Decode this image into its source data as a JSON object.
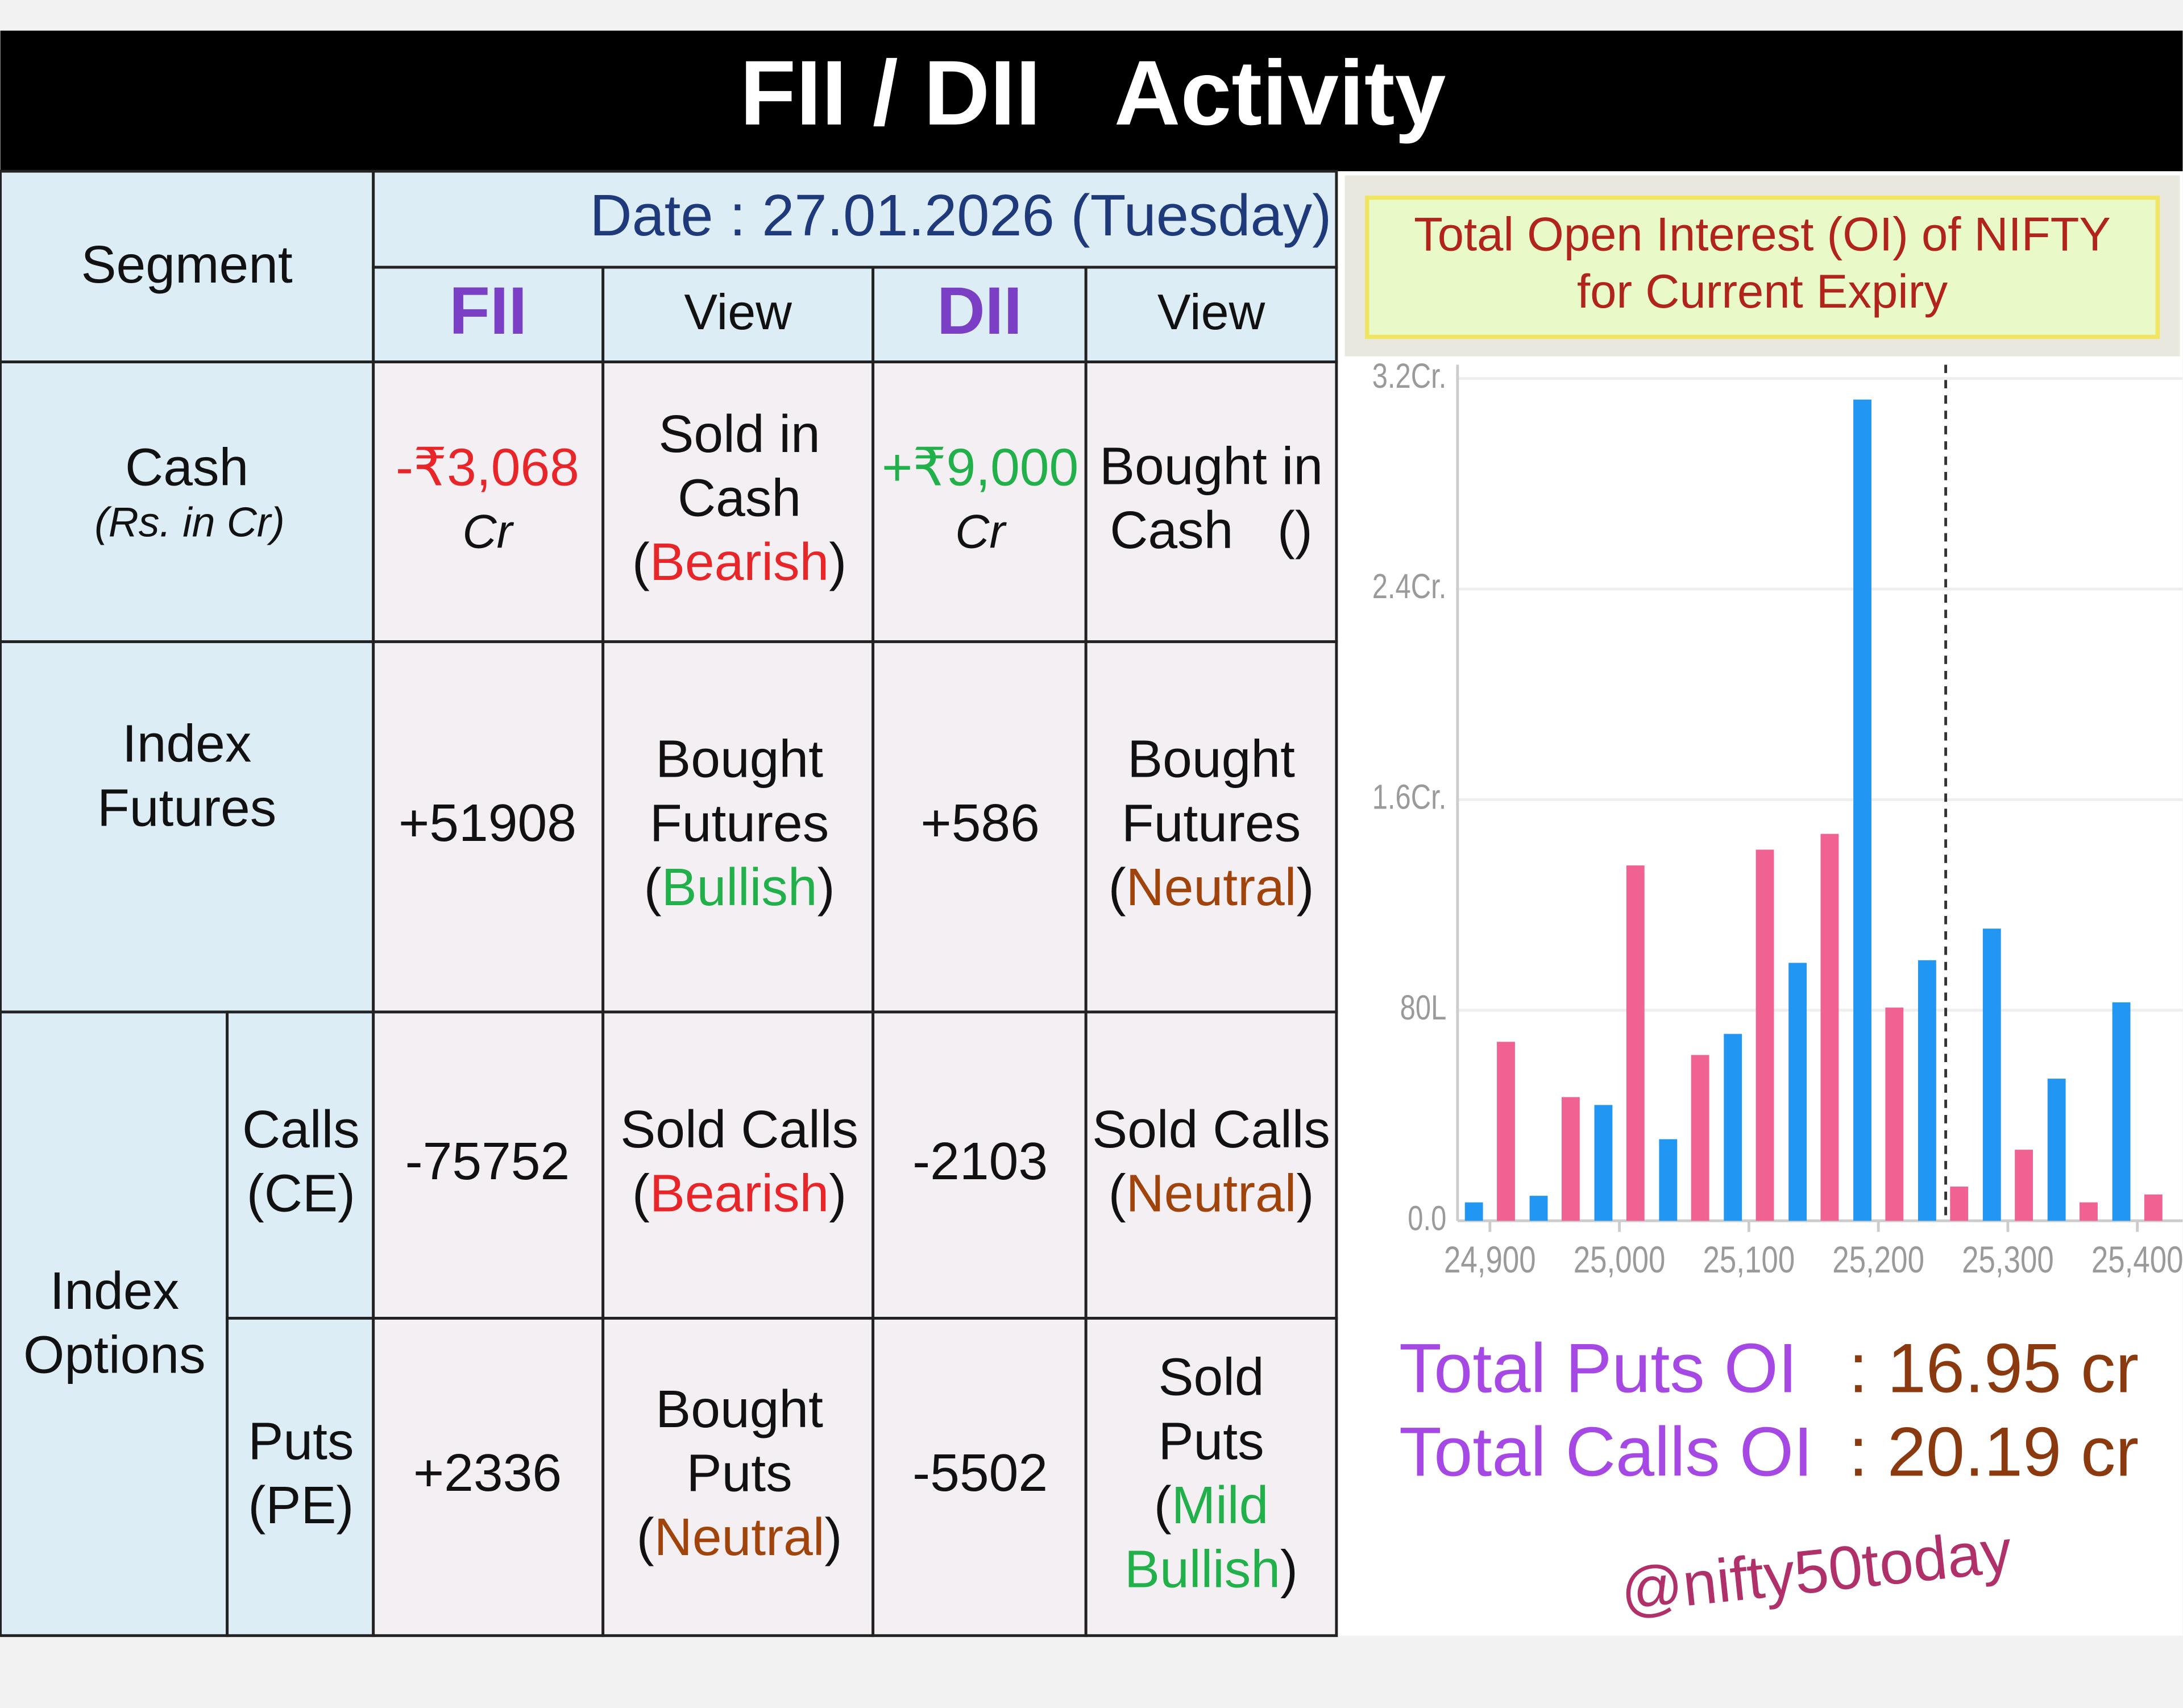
{
  "header": {
    "title": "FII / DII   Activity"
  },
  "table": {
    "segment_header": "Segment",
    "date": "Date : 27.01.2026 (Tuesday)",
    "columns": [
      "FII",
      "View",
      "DII",
      "View"
    ],
    "rows": [
      {
        "segment": [
          "Cash"
        ],
        "note": "(Rs. in Cr)",
        "fii": {
          "text": "-₹3,068",
          "unit": "Cr",
          "color": "#e8262a"
        },
        "fii_view": [
          [
            "Sold in"
          ],
          [
            "Cash"
          ],
          [
            "(",
            {
              "text": "Bearish",
              "color": "#e8262a"
            },
            ")"
          ]
        ],
        "dii": {
          "text": "+₹9,000",
          "unit": "Cr",
          "color": "#22b04b"
        },
        "dii_view": [
          [
            "Bought in"
          ],
          [
            "Cash   ()"
          ]
        ]
      },
      {
        "segment": [
          "Index",
          "Futures"
        ],
        "fii": {
          "text": "+51908"
        },
        "fii_view": [
          [
            "Bought"
          ],
          [
            "Futures"
          ],
          [
            "(",
            {
              "text": "Bullish",
              "color": "#22b04b"
            },
            ")"
          ]
        ],
        "dii": {
          "text": "+586"
        },
        "dii_view": [
          [
            "Bought"
          ],
          [
            "Futures"
          ],
          [
            "(",
            {
              "text": "Neutral",
              "color": "#a0440c"
            },
            ")"
          ]
        ]
      }
    ],
    "options": {
      "segment": [
        "Index",
        "Options"
      ],
      "rows": [
        {
          "sub": [
            "Calls",
            "(CE)"
          ],
          "fii": {
            "text": "-75752"
          },
          "fii_view": [
            [
              "Sold Calls"
            ],
            [
              "(",
              {
                "text": "Bearish",
                "color": "#e8262a"
              },
              ")"
            ]
          ],
          "dii": {
            "text": "-2103"
          },
          "dii_view": [
            [
              "Sold Calls"
            ],
            [
              "(",
              {
                "text": "Neutral",
                "color": "#a0440c"
              },
              ")"
            ]
          ]
        },
        {
          "sub": [
            "Puts",
            "(PE)"
          ],
          "fii": {
            "text": "+2336"
          },
          "fii_view": [
            [
              "Bought"
            ],
            [
              "Puts"
            ],
            [
              "(",
              {
                "text": "Neutral",
                "color": "#a0440c"
              },
              ")"
            ]
          ],
          "dii": {
            "text": "-5502"
          },
          "dii_view": [
            [
              "Sold"
            ],
            [
              "Puts"
            ],
            [
              "(",
              {
                "text": "Mild",
                "color": "#22b04b"
              }
            ],
            [
              {
                "text": "Bullish",
                "color": "#22b04b"
              },
              ")"
            ]
          ]
        }
      ]
    }
  },
  "oi_box": {
    "line1": "Total Open Interest (OI) of NIFTY",
    "line2": "for Current Expiry"
  },
  "chart_data": {
    "type": "bar",
    "x": [
      24900,
      24950,
      25000,
      25050,
      25100,
      25150,
      25200,
      25250,
      25300,
      25350,
      25400
    ],
    "series": [
      {
        "color": "#2196f3",
        "values": [
          0.07,
          0.095,
          0.44,
          0.31,
          0.71,
          0.98,
          3.12,
          0.99,
          1.11,
          0.54,
          0.83
        ]
      },
      {
        "color": "#f06292",
        "values": [
          0.68,
          0.47,
          1.35,
          0.63,
          1.41,
          1.47,
          0.81,
          0.13,
          0.27,
          0.07,
          0.1
        ]
      }
    ],
    "xlim": [
      24875,
      25435
    ],
    "xticks": [
      {
        "value": 24900,
        "label": "24,900"
      },
      {
        "value": 25000,
        "label": "25,000"
      },
      {
        "value": 25100,
        "label": "25,100"
      },
      {
        "value": 25200,
        "label": "25,200"
      },
      {
        "value": 25300,
        "label": "25,300"
      },
      {
        "value": 25400,
        "label": "25,400"
      }
    ],
    "ylim": [
      0,
      3.3
    ],
    "yticks": [
      {
        "value": 0,
        "label": "0.0"
      },
      {
        "value": 0.8,
        "label": "80L"
      },
      {
        "value": 1.6,
        "label": "1.6Cr."
      },
      {
        "value": 2.4,
        "label": "2.4Cr."
      },
      {
        "value": 3.2,
        "label": "3.2Cr."
      }
    ],
    "grid": true,
    "reference_x": 25252
  },
  "summary": {
    "puts_label": "Total Puts OI",
    "puts_value": ": 16.95 cr",
    "calls_label": "Total Calls OI",
    "calls_value": ": 20.19 cr"
  },
  "watermark": "@nifty50today"
}
